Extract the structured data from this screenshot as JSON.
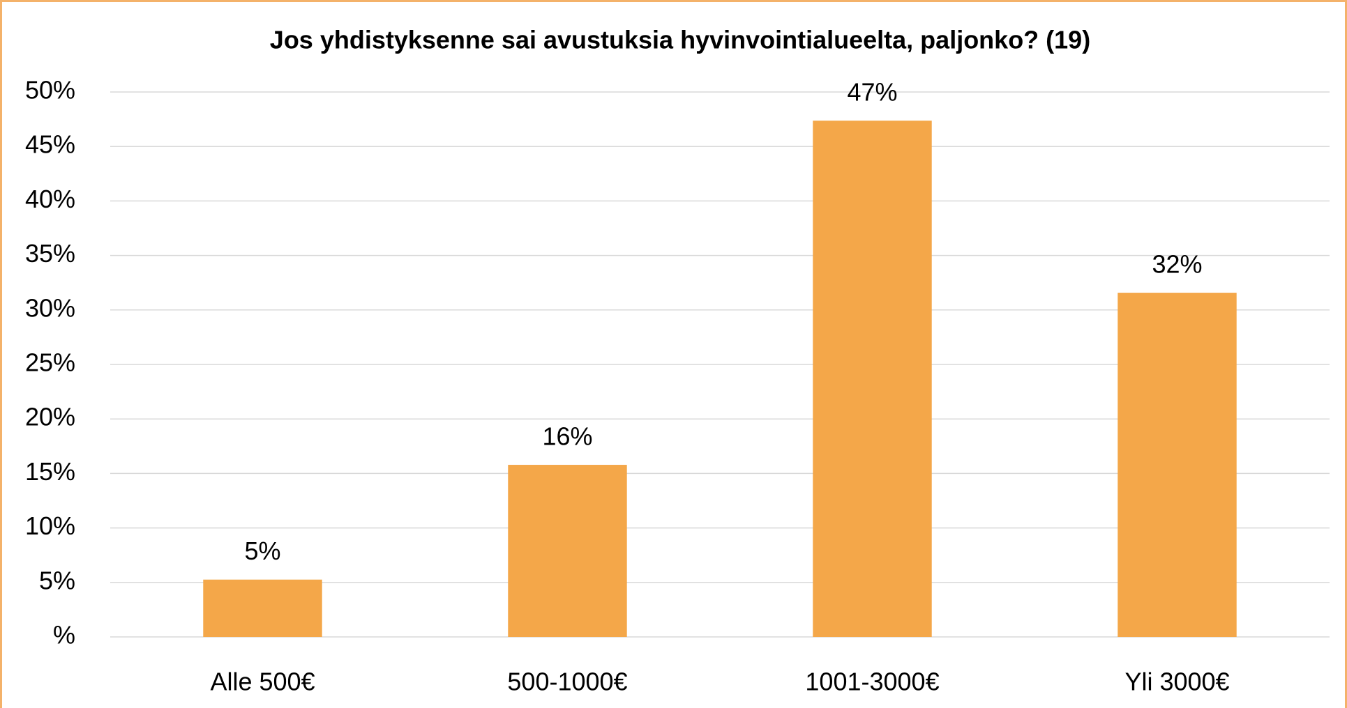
{
  "chart_data": {
    "type": "bar",
    "title": "Jos yhdistyksenne sai avustuksia hyvinvointialueelta, paljonko? (19)",
    "categories": [
      "Alle 500€",
      "500-1000€",
      "1001-3000€",
      "Yli 3000€"
    ],
    "values": [
      5.26,
      15.79,
      47.37,
      31.58
    ],
    "value_labels": [
      "5%",
      "16%",
      "47%",
      "32%"
    ],
    "color": "#f4a749",
    "ylim": [
      0,
      50
    ],
    "yticks": [
      {
        "value": 0,
        "label": "%"
      },
      {
        "value": 5,
        "label": "5%"
      },
      {
        "value": 10,
        "label": "10%"
      },
      {
        "value": 15,
        "label": "15%"
      },
      {
        "value": 20,
        "label": "20%"
      },
      {
        "value": 25,
        "label": "25%"
      },
      {
        "value": 30,
        "label": "30%"
      },
      {
        "value": 35,
        "label": "35%"
      },
      {
        "value": 40,
        "label": "40%"
      },
      {
        "value": 45,
        "label": "45%"
      },
      {
        "value": 50,
        "label": "50%"
      }
    ],
    "grid": true
  }
}
